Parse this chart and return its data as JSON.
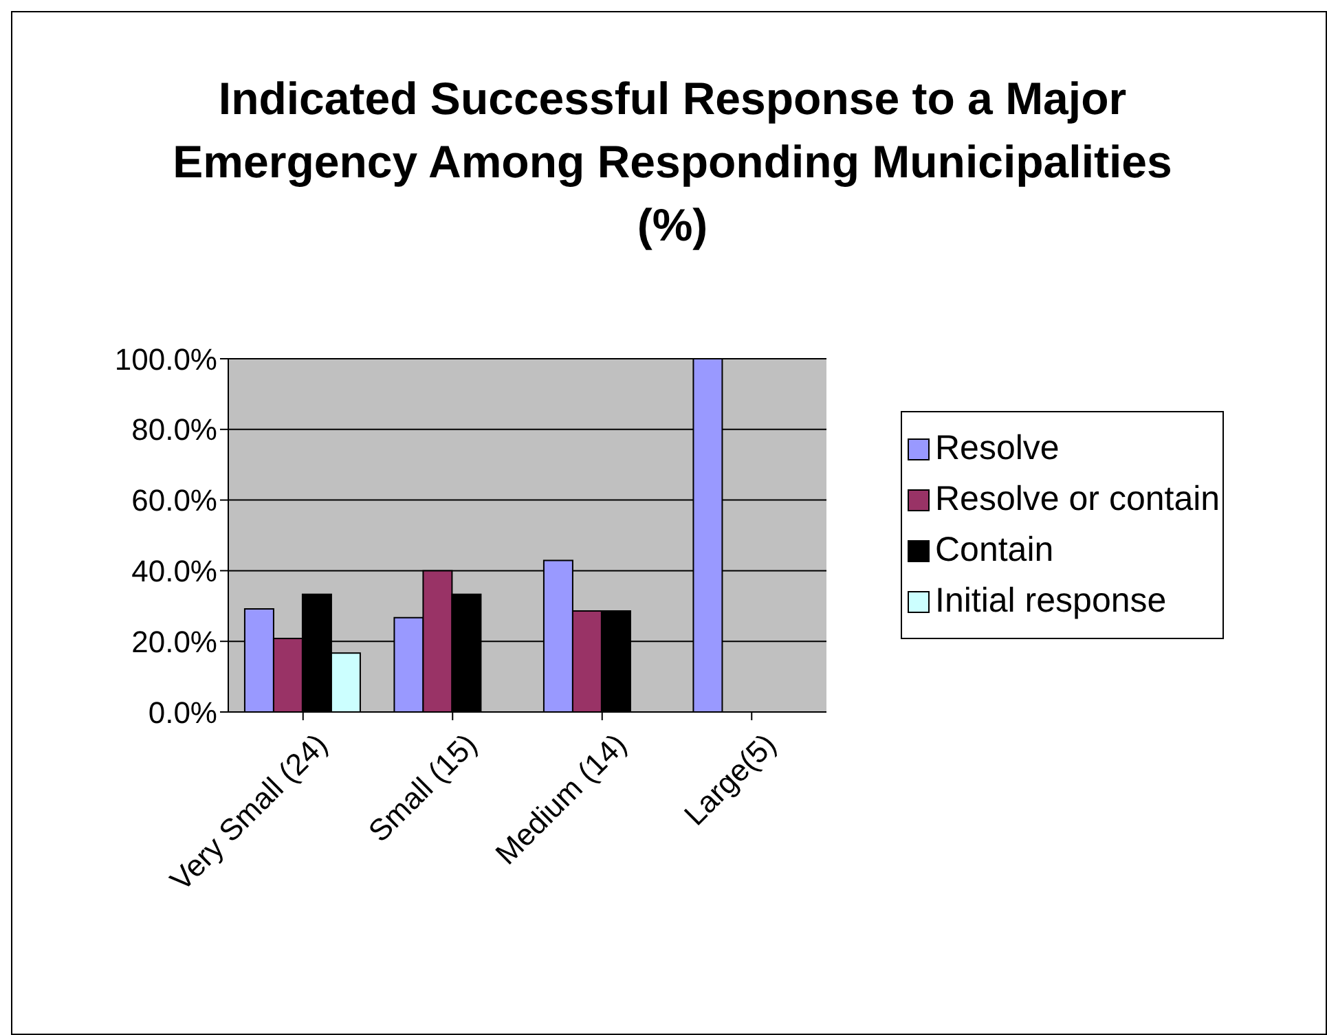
{
  "chart_data": {
    "type": "bar",
    "title": "Indicated Successful Response to a Major Emergency Among Responding Municipalities (%)",
    "categories": [
      "Very Small (24)",
      "Small (15)",
      "Medium (14)",
      "Large(5)"
    ],
    "series": [
      {
        "name": "Resolve",
        "color": "#9999ff",
        "values": [
          29.2,
          26.7,
          42.9,
          100
        ]
      },
      {
        "name": "Resolve or contain",
        "color": "#993366",
        "values": [
          20.8,
          40,
          28.6,
          null
        ]
      },
      {
        "name": "Contain",
        "color": "#000000",
        "values": [
          33.3,
          33.3,
          28.6,
          null
        ]
      },
      {
        "name": "Initial response",
        "color": "#ccffff",
        "values": [
          16.7,
          null,
          null,
          null
        ]
      }
    ],
    "ylim": [
      0,
      100
    ],
    "yticks": [
      {
        "value": 0,
        "label": "0.0%"
      },
      {
        "value": 20,
        "label": "20.0%"
      },
      {
        "value": 40,
        "label": "40.0%"
      },
      {
        "value": 60,
        "label": "60.0%"
      },
      {
        "value": 80,
        "label": "80.0%"
      },
      {
        "value": 100,
        "label": "100.0%"
      }
    ],
    "grid": "y",
    "legend": "right"
  }
}
